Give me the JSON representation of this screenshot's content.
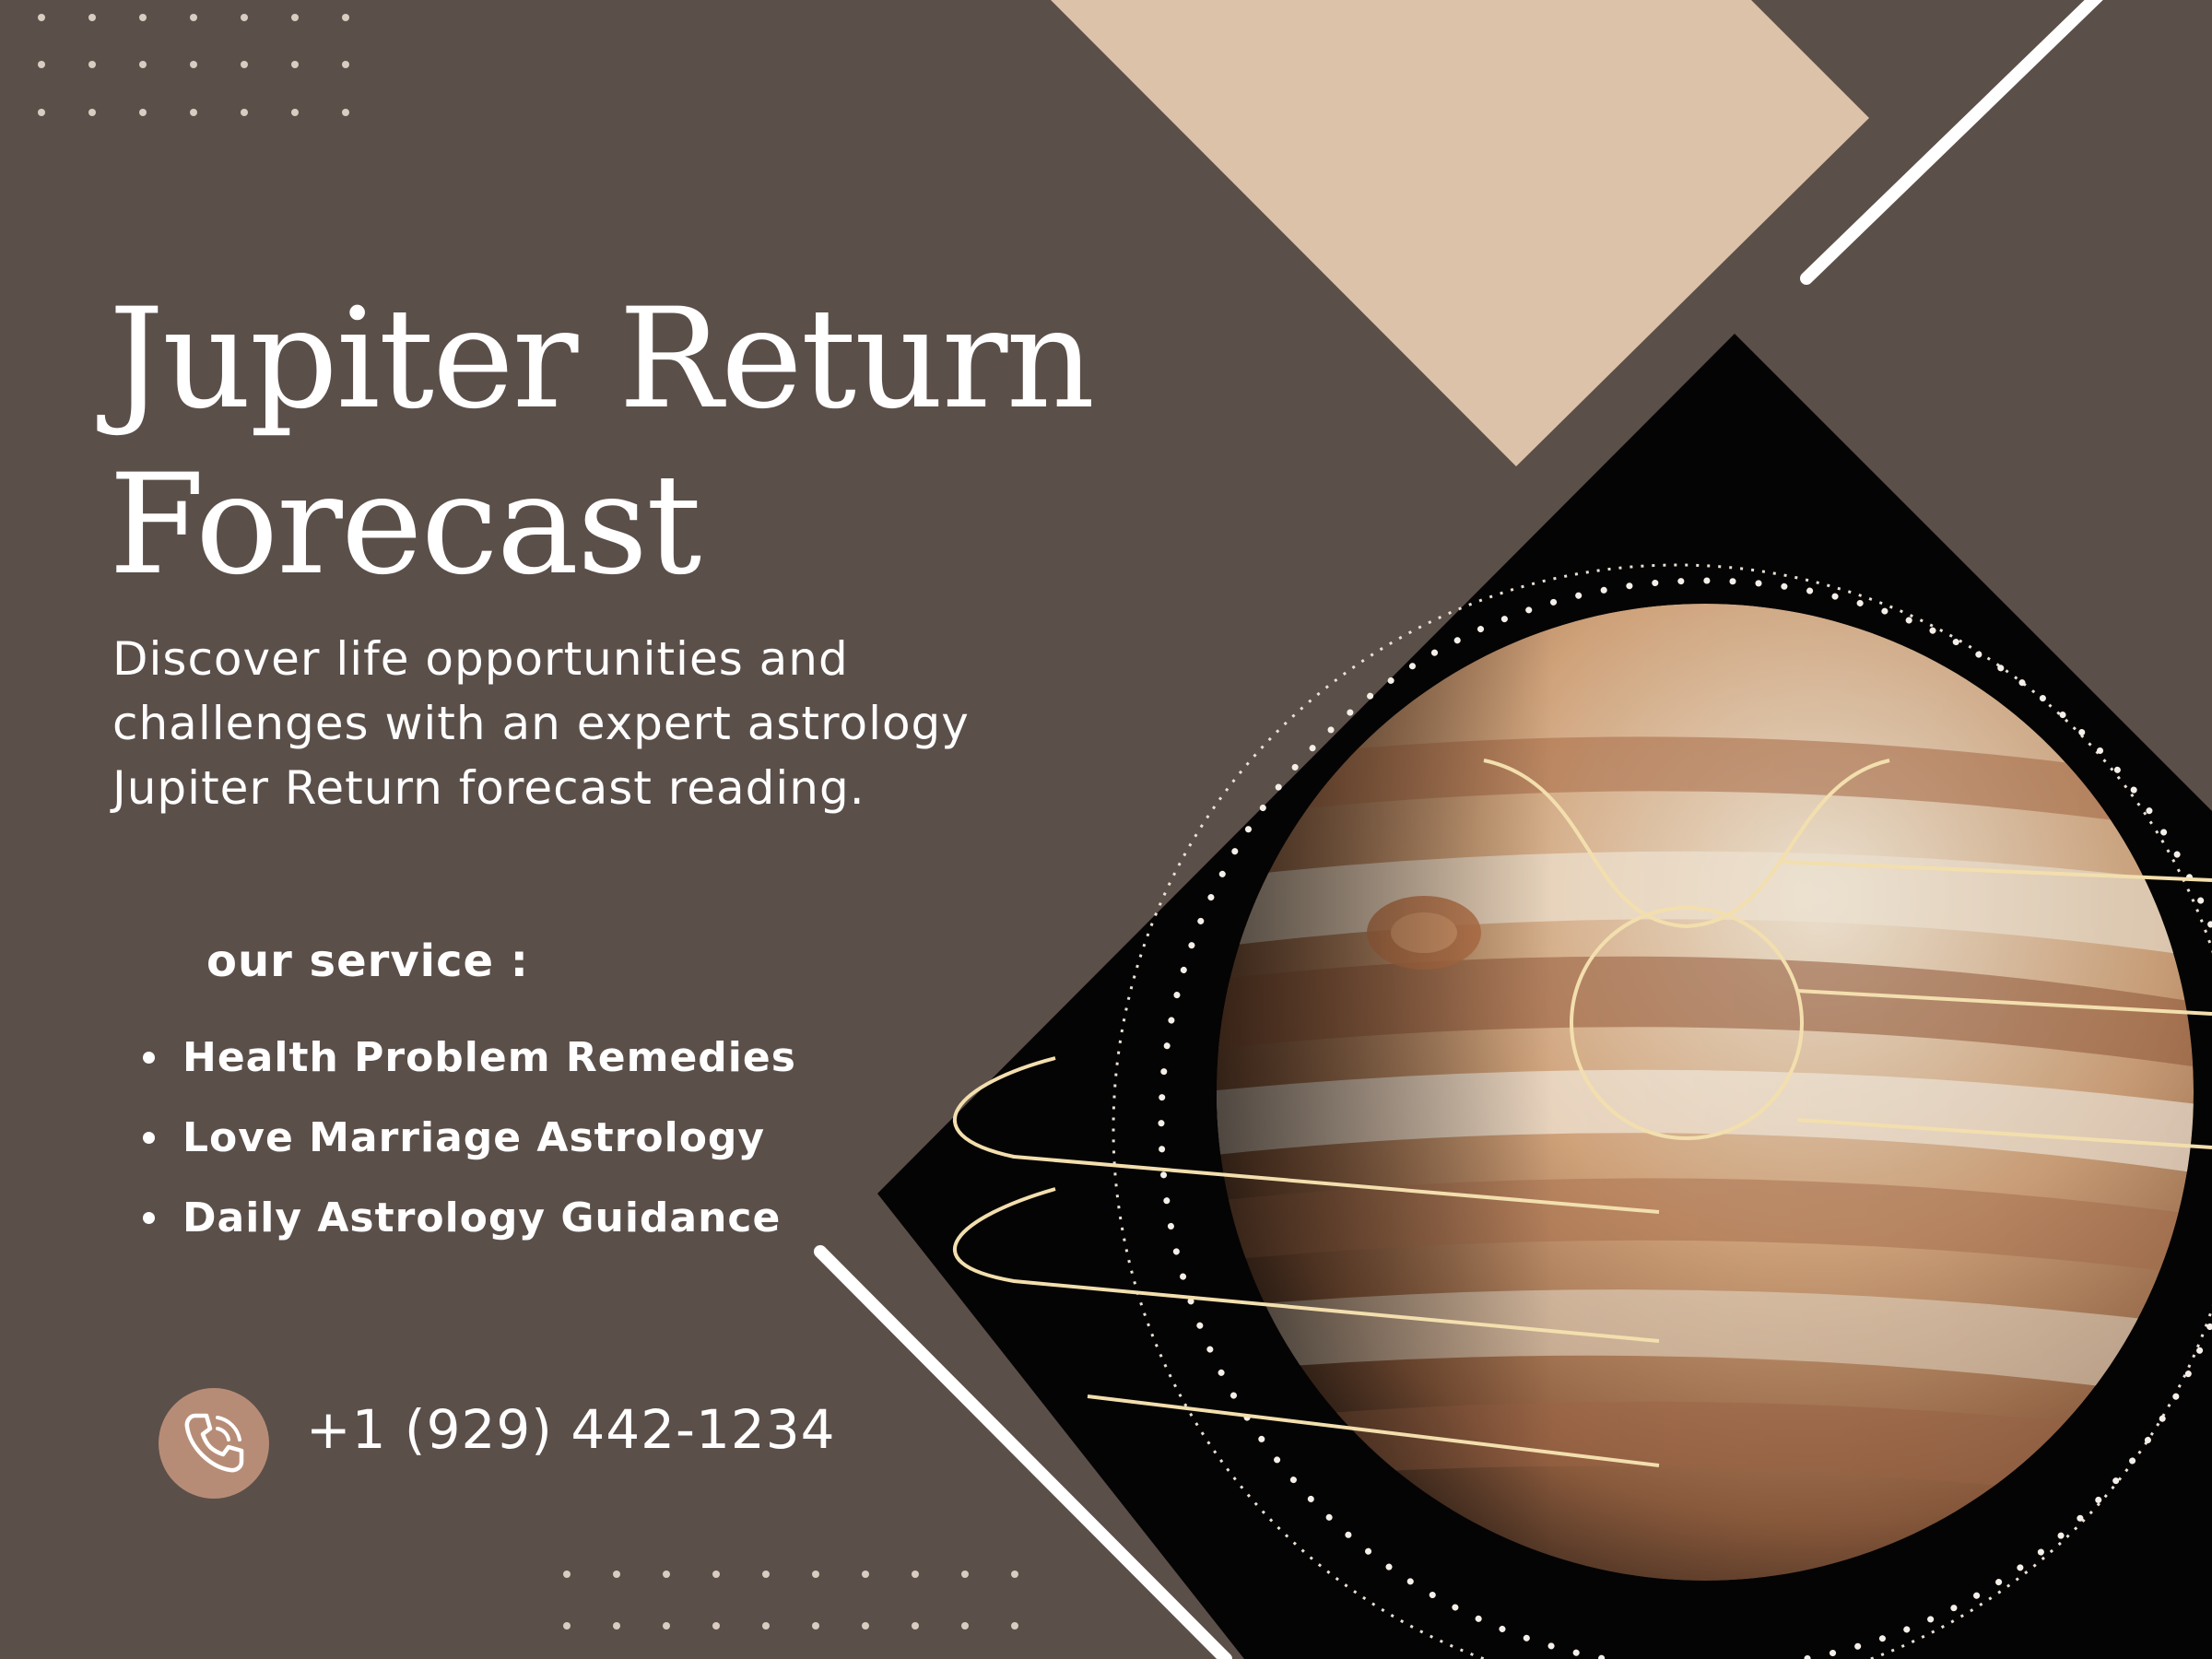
{
  "poster": {
    "title_line1": "Jupiter Return",
    "title_line2": "Forecast",
    "description_line1": "Discover life opportunities and",
    "description_line2": "challenges with an expert astrology",
    "description_line3": "Jupiter Return forecast reading.",
    "service_heading": "our service :",
    "services": [
      "Health Problem Remedies",
      "Love Marriage Astrology",
      "Daily Astrology Guidance"
    ],
    "phone_icon": "phone-icon",
    "phone": "+1 (929) 442-1234"
  },
  "colors": {
    "background": "#5b4f49",
    "accent_beige": "#dcc2a8",
    "accent_brown": "#b78c76",
    "text": "#ffffff",
    "gold_lines": "#f3dfae"
  }
}
